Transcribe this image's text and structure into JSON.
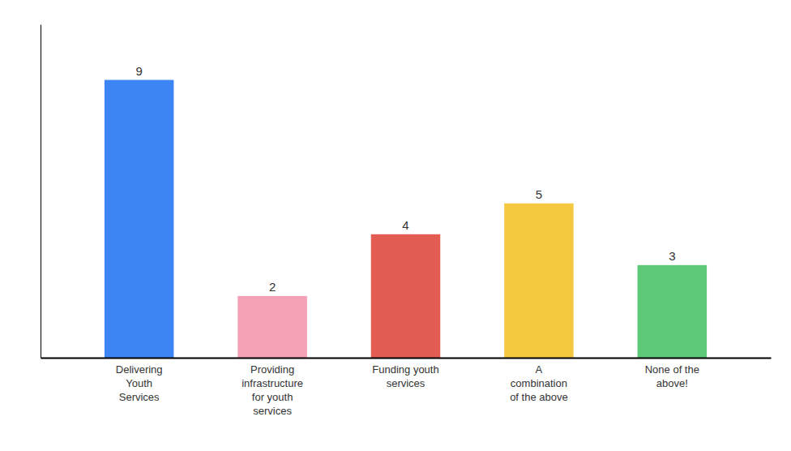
{
  "chart_data": {
    "type": "bar",
    "categories": [
      "Delivering\nYouth\nServices",
      "Providing\ninfrastructure\nfor youth\nservices",
      "Funding youth\nservices",
      "A\ncombination\nof the above",
      "None of the\nabove!"
    ],
    "values": [
      9,
      2,
      4,
      5,
      3
    ],
    "colors": [
      "#3d85f5",
      "#f4a0b5",
      "#e35c52",
      "#f5c842",
      "#5dc878"
    ],
    "ylim": [
      0,
      10.8
    ],
    "grid": false,
    "data_labels": true,
    "tick_labels": "x"
  }
}
